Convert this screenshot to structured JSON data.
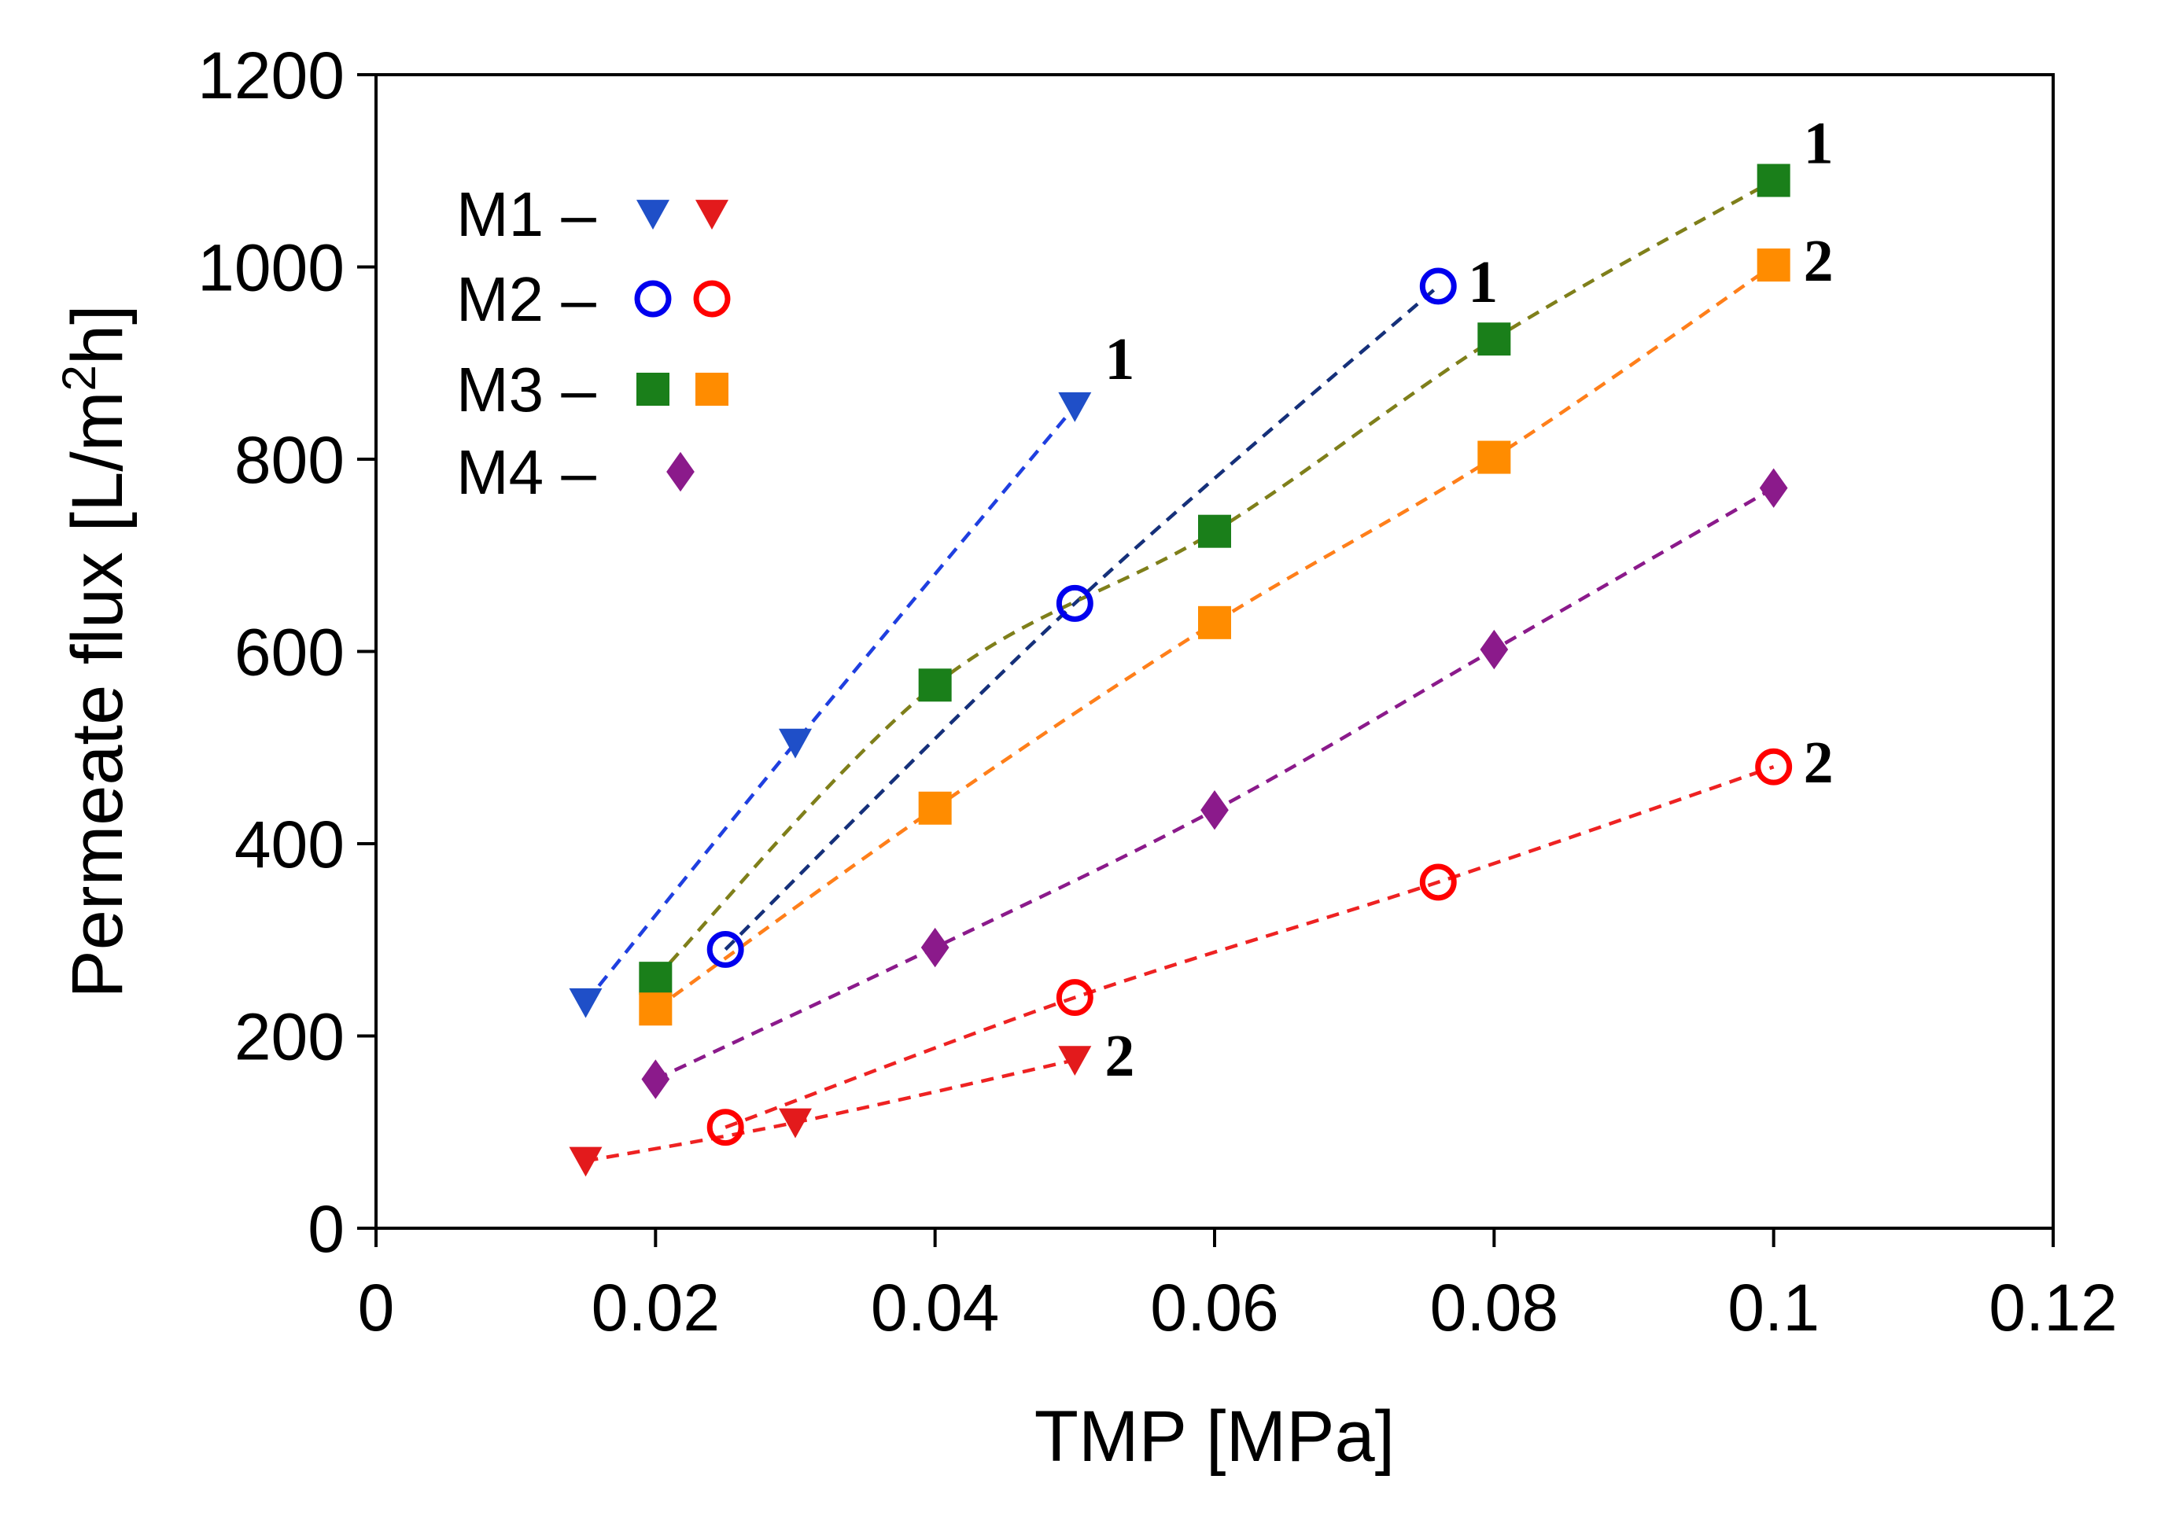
{
  "chart_data": {
    "type": "scatter",
    "title": "",
    "xlabel": "TMP [MPa]",
    "ylabel_main": "Permeate flux [L/m",
    "ylabel_sup": "2",
    "ylabel_end": "h]",
    "xlim": [
      0,
      0.12
    ],
    "ylim": [
      0,
      1200
    ],
    "x_ticks": [
      0,
      0.02,
      0.04,
      0.06,
      0.08,
      0.1,
      0.12
    ],
    "x_tick_labels": [
      "0",
      "0.02",
      "0.04",
      "0.06",
      "0.08",
      "0.1",
      "0.12"
    ],
    "y_ticks": [
      0,
      200,
      400,
      600,
      800,
      1000,
      1200
    ],
    "y_tick_labels": [
      "0",
      "200",
      "400",
      "600",
      "800",
      "1000",
      "1200"
    ],
    "legend": [
      {
        "label": "M1 –",
        "markers": [
          {
            "shape": "triangle-down",
            "color": "#1f4fc8"
          },
          {
            "shape": "triangle-down",
            "color": "#e31a1c"
          }
        ]
      },
      {
        "label": "M2 –",
        "markers": [
          {
            "shape": "circle",
            "color": "#0000ee"
          },
          {
            "shape": "circle",
            "color": "#ff0000"
          }
        ]
      },
      {
        "label": "M3 –",
        "markers": [
          {
            "shape": "square",
            "color": "#1a7f1a"
          },
          {
            "shape": "square",
            "color": "#ff8c00"
          }
        ]
      },
      {
        "label": "M4 –",
        "markers": [
          {
            "shape": "diamond",
            "color": "#8b1a8b"
          }
        ]
      }
    ],
    "series": [
      {
        "name": "M1-1",
        "marker": "triangle-down",
        "color": "#1f4fc8",
        "line_color": "#1f3fe0",
        "x": [
          0.015,
          0.03,
          0.05
        ],
        "y": [
          235,
          505,
          855
        ],
        "end_label": "1"
      },
      {
        "name": "M1-2",
        "marker": "triangle-down",
        "color": "#e31a1c",
        "line_color": "#ee2222",
        "x": [
          0.015,
          0.03,
          0.05
        ],
        "y": [
          70,
          110,
          175
        ],
        "end_label": "2"
      },
      {
        "name": "M2-1",
        "marker": "circle",
        "color": "#0000ee",
        "line_color": "#15307a",
        "x": [
          0.025,
          0.05,
          0.076
        ],
        "y": [
          290,
          650,
          980
        ],
        "end_label": "1"
      },
      {
        "name": "M2-2",
        "marker": "circle",
        "color": "#ff0000",
        "line_color": "#ee2222",
        "x": [
          0.025,
          0.05,
          0.076,
          0.1
        ],
        "y": [
          105,
          240,
          360,
          480
        ],
        "end_label": "2"
      },
      {
        "name": "M3-1",
        "marker": "square",
        "color": "#1a7f1a",
        "line_color": "#7f7f1a",
        "x": [
          0.02,
          0.04,
          0.06,
          0.08,
          0.1
        ],
        "y": [
          260,
          565,
          725,
          925,
          1090
        ],
        "end_label": "1"
      },
      {
        "name": "M3-2",
        "marker": "square",
        "color": "#ff8c00",
        "line_color": "#ff7f1a",
        "x": [
          0.02,
          0.04,
          0.06,
          0.08,
          0.1
        ],
        "y": [
          228,
          437,
          630,
          802,
          1002
        ],
        "end_label": "2"
      },
      {
        "name": "M4",
        "marker": "diamond",
        "color": "#8b1a8b",
        "line_color": "#8b1a8b",
        "x": [
          0.02,
          0.04,
          0.06,
          0.08,
          0.1
        ],
        "y": [
          155,
          292,
          435,
          602,
          770
        ],
        "end_label": ""
      }
    ]
  }
}
